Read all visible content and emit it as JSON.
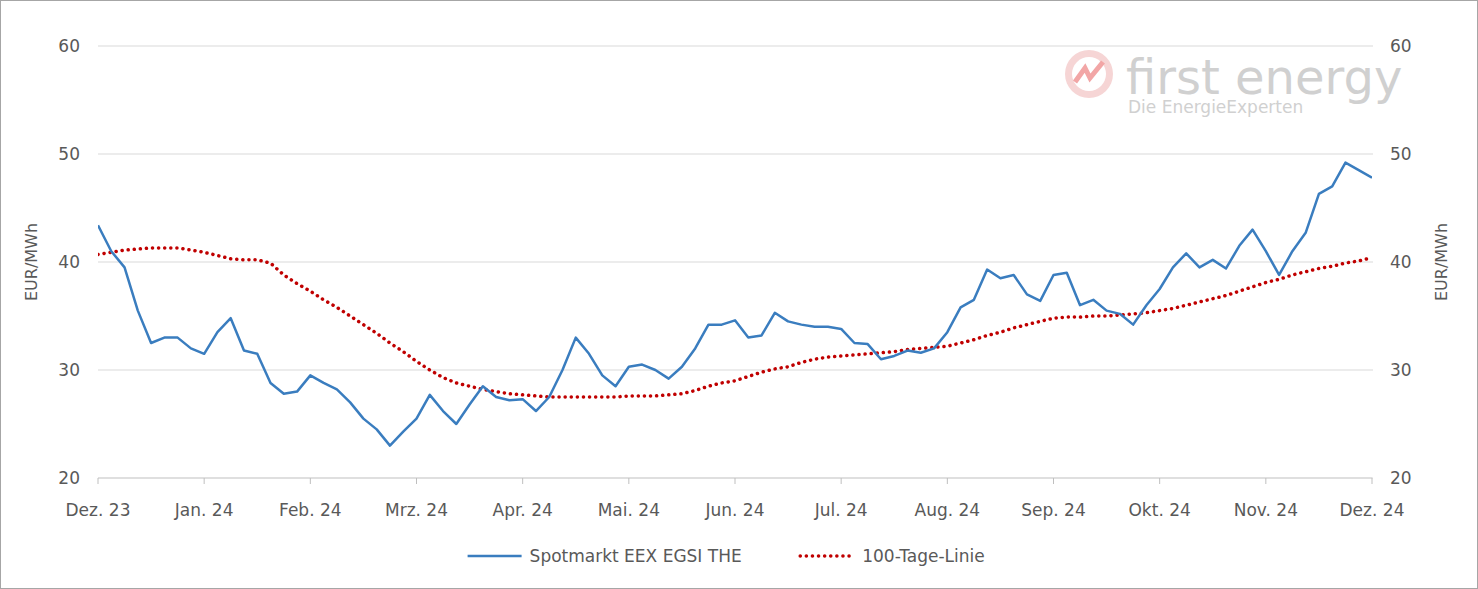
{
  "chart_data": {
    "type": "line",
    "y_label": "EUR/MWh",
    "y2_label": "EUR/MWh",
    "annotations": [
      "first energy",
      "Die EnergieExperten"
    ],
    "categories": [
      "Dez. 23",
      null,
      null,
      null,
      null,
      null,
      null,
      null,
      "Jan. 24",
      null,
      null,
      null,
      null,
      null,
      null,
      null,
      "Feb. 24",
      null,
      null,
      null,
      null,
      null,
      null,
      null,
      "Mrz. 24",
      null,
      null,
      null,
      null,
      null,
      null,
      null,
      "Apr. 24",
      null,
      null,
      null,
      null,
      null,
      null,
      null,
      "Mai. 24",
      null,
      null,
      null,
      null,
      null,
      null,
      null,
      "Jun. 24",
      null,
      null,
      null,
      null,
      null,
      null,
      null,
      "Jul. 24",
      null,
      null,
      null,
      null,
      null,
      null,
      null,
      "Aug. 24",
      null,
      null,
      null,
      null,
      null,
      null,
      null,
      "Sep. 24",
      null,
      null,
      null,
      null,
      null,
      null,
      null,
      "Okt. 24",
      null,
      null,
      null,
      null,
      null,
      null,
      null,
      "Nov. 24",
      null,
      null,
      null,
      null,
      null,
      null,
      null,
      "Dez. 24"
    ],
    "series": [
      {
        "name": "Spotmarkt EEX EGSI THE",
        "color": "#3a7dbf",
        "line_style": "solid",
        "values": [
          43.4,
          41.0,
          39.5,
          35.5,
          32.5,
          33.0,
          33.0,
          32.0,
          31.5,
          33.5,
          34.8,
          31.8,
          31.5,
          28.8,
          27.8,
          28.0,
          29.5,
          28.8,
          28.2,
          27.0,
          25.5,
          24.5,
          23.0,
          24.3,
          25.5,
          27.7,
          26.2,
          25.0,
          26.8,
          28.5,
          27.5,
          27.2,
          27.3,
          26.2,
          27.5,
          30.0,
          33.0,
          31.5,
          29.5,
          28.5,
          30.3,
          30.5,
          30.0,
          29.2,
          30.3,
          32.0,
          34.2,
          34.2,
          34.6,
          33.0,
          33.2,
          35.3,
          34.5,
          34.2,
          34.0,
          34.0,
          33.8,
          32.5,
          32.4,
          31.0,
          31.3,
          31.8,
          31.6,
          32.0,
          33.5,
          35.8,
          36.5,
          39.3,
          38.5,
          38.8,
          37.0,
          36.4,
          38.8,
          39.0,
          36.0,
          36.5,
          35.5,
          35.2,
          34.2,
          36.0,
          37.5,
          39.5,
          40.8,
          39.5,
          40.2,
          39.4,
          41.5,
          43.0,
          41.0,
          38.8,
          41.0,
          42.7,
          46.3,
          47.0,
          49.2,
          48.5,
          47.8
        ]
      },
      {
        "name": "100-Tage-Linie",
        "color": "#c00000",
        "line_style": "dotted",
        "values": [
          40.7,
          40.9,
          41.1,
          41.2,
          41.3,
          41.3,
          41.3,
          41.1,
          40.9,
          40.6,
          40.3,
          40.2,
          40.2,
          39.9,
          38.8,
          38.0,
          37.3,
          36.5,
          35.8,
          35.0,
          34.2,
          33.4,
          32.5,
          31.7,
          30.8,
          30.0,
          29.3,
          28.8,
          28.5,
          28.2,
          28.0,
          27.8,
          27.7,
          27.6,
          27.5,
          27.5,
          27.5,
          27.5,
          27.5,
          27.5,
          27.6,
          27.6,
          27.6,
          27.7,
          27.8,
          28.1,
          28.5,
          28.8,
          29.0,
          29.4,
          29.8,
          30.1,
          30.3,
          30.7,
          31.0,
          31.2,
          31.3,
          31.4,
          31.5,
          31.6,
          31.7,
          31.9,
          32.0,
          32.1,
          32.2,
          32.5,
          32.8,
          33.2,
          33.5,
          33.9,
          34.2,
          34.5,
          34.8,
          34.9,
          34.9,
          35.0,
          35.0,
          35.1,
          35.2,
          35.3,
          35.5,
          35.7,
          36.0,
          36.3,
          36.6,
          36.9,
          37.3,
          37.7,
          38.1,
          38.4,
          38.8,
          39.1,
          39.4,
          39.6,
          39.9,
          40.1,
          40.4
        ]
      }
    ],
    "ylim": [
      20,
      60
    ],
    "yticks": [
      20,
      30,
      40,
      50,
      60
    ],
    "y2lim": [
      20,
      60
    ],
    "y2ticks": [
      20,
      30,
      40,
      50,
      60
    ],
    "grid": true,
    "legend": "bottom"
  }
}
